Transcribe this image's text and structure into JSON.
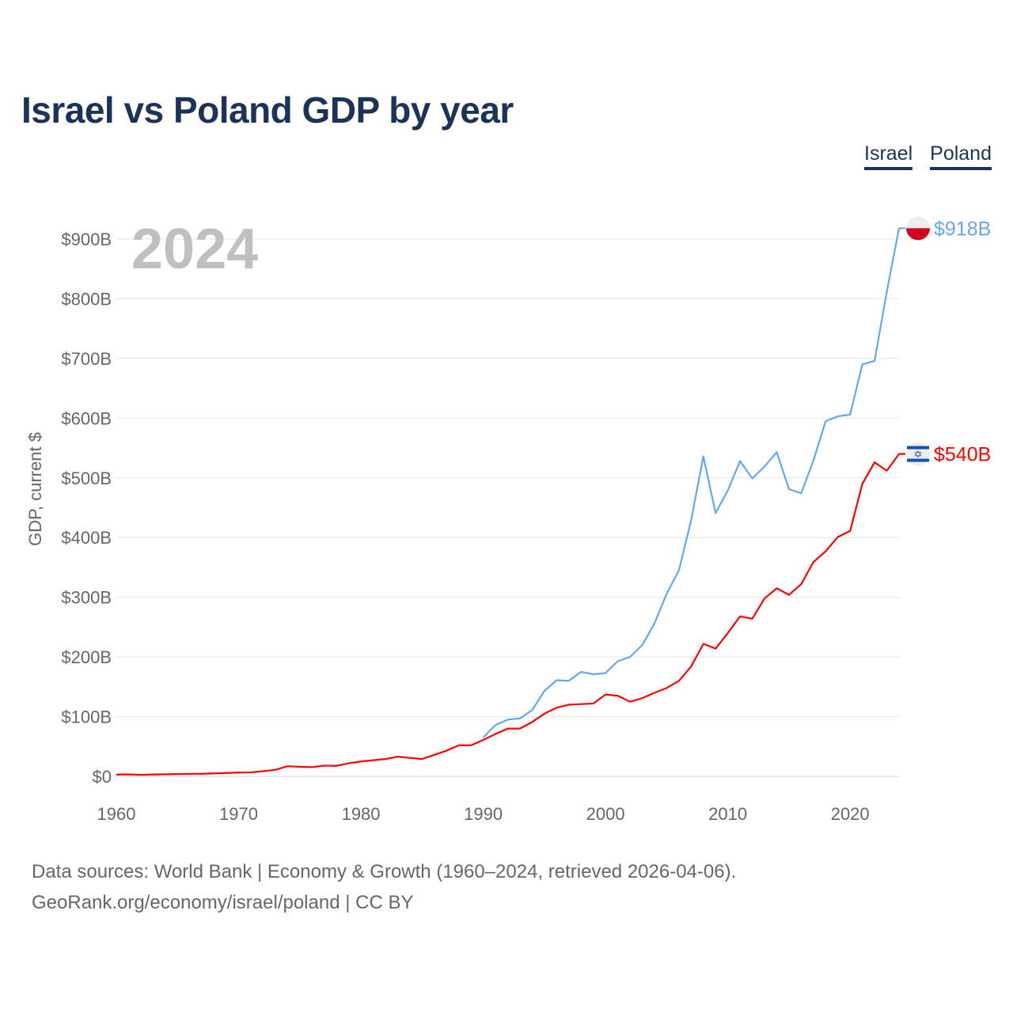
{
  "title": "Israel vs Poland GDP by year",
  "legend": [
    {
      "label": "Israel",
      "color": "#ff0000"
    },
    {
      "label": "Poland",
      "color": "#64a7ec"
    }
  ],
  "year_label": "2024",
  "footer": {
    "line1": "Data sources: World Bank | Economy & Growth (1960–2024, retrieved 2026-04-06).",
    "line2": "GeoRank.org/economy/israel/poland | CC BY"
  },
  "chart_data": {
    "type": "line",
    "title": "Israel vs Poland GDP by year",
    "ylabel": "GDP, current $",
    "xlabel": "",
    "xlim": [
      1960,
      2024
    ],
    "ylim": [
      0,
      900
    ],
    "y_unit": "billion USD",
    "x_ticks": [
      "1960",
      "1970",
      "1980",
      "1990",
      "2000",
      "2010",
      "2020"
    ],
    "y_ticks": [
      "$0",
      "$100B",
      "$200B",
      "$300B",
      "$400B",
      "$500B",
      "$600B",
      "$700B",
      "$800B",
      "$900B"
    ],
    "grid": true,
    "legend_position": "top-right",
    "series": [
      {
        "name": "Israel",
        "color": "#ff0000",
        "end_label": "$540B",
        "start_year": 1960,
        "values": [
          3,
          3.3,
          2.6,
          3.1,
          3.5,
          3.9,
          4.2,
          4.3,
          5,
          5.6,
          6.5,
          6.7,
          8.7,
          11,
          17,
          16,
          15.5,
          18,
          17.6,
          22,
          25,
          27,
          29,
          33,
          31,
          29,
          36,
          43,
          52,
          52,
          61,
          71,
          80,
          80,
          91,
          105,
          115,
          120,
          121,
          122,
          137,
          135,
          125,
          131,
          140,
          148,
          160,
          184,
          222,
          214,
          240,
          268,
          264,
          298,
          315,
          304,
          322,
          359,
          377,
          401,
          411,
          490,
          526,
          512,
          540
        ]
      },
      {
        "name": "Poland",
        "color": "#64a7ec",
        "end_label": "$918B",
        "start_year": 1990,
        "values": [
          65,
          86,
          95,
          97,
          111,
          143,
          161,
          160,
          175,
          171,
          173,
          193,
          200,
          220,
          256,
          306,
          345,
          429,
          536,
          441,
          479,
          528,
          499,
          519,
          543,
          481,
          474,
          529,
          595,
          603,
          606,
          690,
          696,
          812,
          918
        ]
      }
    ]
  }
}
